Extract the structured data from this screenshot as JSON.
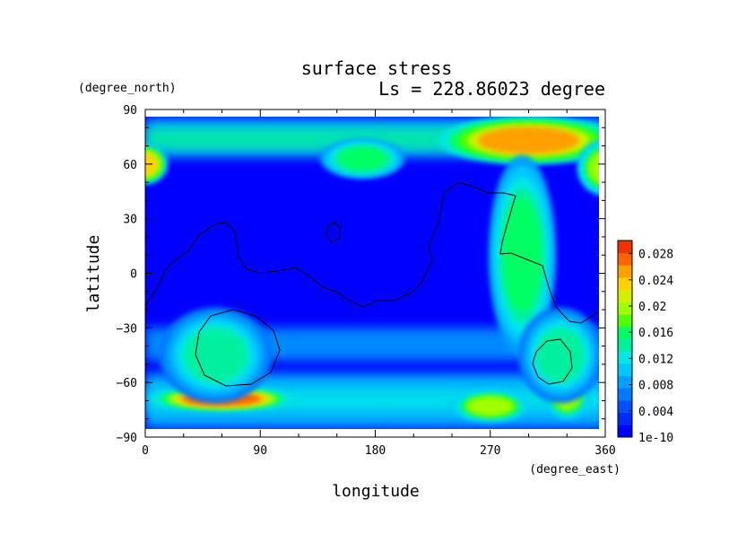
{
  "chart_data": {
    "type": "heatmap",
    "title": "surface stress",
    "subtitle": "Ls = 228.86023 degree",
    "xlabel": "longitude",
    "ylabel": "latitude",
    "x_units": "(degree_east)",
    "y_units": "(degree_north)",
    "xlim": [
      0,
      360
    ],
    "ylim": [
      -90,
      90
    ],
    "x_ticks": [
      "0",
      "90",
      "180",
      "270",
      "360"
    ],
    "y_ticks": [
      "90",
      "60",
      "30",
      "0",
      "−30",
      "−60",
      "−90"
    ],
    "x_tick_values": [
      0,
      90,
      180,
      270,
      360
    ],
    "y_tick_values": [
      90,
      60,
      30,
      0,
      -30,
      -60,
      -90
    ],
    "colorbar": {
      "labels": [
        "0.028",
        "0.024",
        "0.02",
        "0.016",
        "0.012",
        "0.008",
        "0.004",
        "1e-10"
      ],
      "label_values": [
        0.028,
        0.024,
        0.02,
        0.016,
        0.012,
        0.008,
        0.004,
        0.0
      ],
      "min": 0.0,
      "max": 0.03,
      "colors": [
        "#0000ff",
        "#0028ff",
        "#0050ff",
        "#0078ff",
        "#00a0ff",
        "#00c8ff",
        "#00e6e6",
        "#00f0a0",
        "#00ff64",
        "#50ff00",
        "#a0ff00",
        "#d2f000",
        "#ffd200",
        "#ffa000",
        "#ff6400",
        "#f03200"
      ]
    },
    "grid": false,
    "field_note_hotspots": [
      {
        "lon": 300,
        "lat": 73,
        "value": 0.026,
        "rx": 32,
        "ry": 6
      },
      {
        "lon": 60,
        "lat": -69,
        "value": 0.027,
        "rx": 25,
        "ry": 3
      },
      {
        "lon": 0,
        "lat": 60,
        "value": 0.024,
        "rx": 8,
        "ry": 5
      },
      {
        "lon": 360,
        "lat": 58,
        "value": 0.02,
        "rx": 10,
        "ry": 7
      },
      {
        "lon": 270,
        "lat": -73,
        "value": 0.02,
        "rx": 14,
        "ry": 4
      },
      {
        "lon": 330,
        "lat": -67,
        "value": 0.02,
        "rx": 8,
        "ry": 6
      },
      {
        "lon": 295,
        "lat": 10,
        "value": 0.016,
        "rx": 12,
        "ry": 25
      },
      {
        "lon": 325,
        "lat": -45,
        "value": 0.014,
        "rx": 15,
        "ry": 12
      },
      {
        "lon": 55,
        "lat": -45,
        "value": 0.014,
        "rx": 20,
        "ry": 12
      },
      {
        "lon": 170,
        "lat": 63,
        "value": 0.016,
        "rx": 15,
        "ry": 5
      }
    ]
  }
}
